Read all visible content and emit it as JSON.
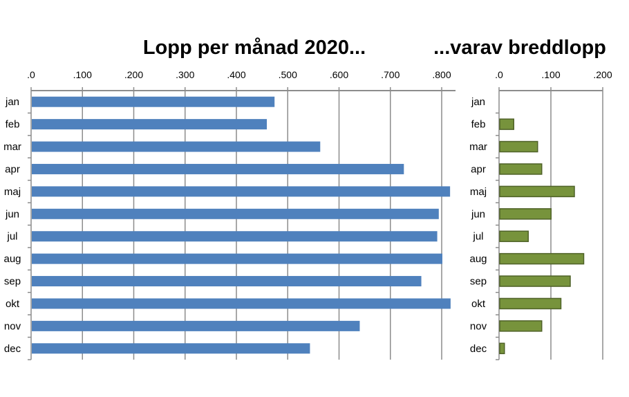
{
  "chart_data": [
    {
      "type": "bar",
      "orientation": "horizontal",
      "title": "Lopp per månad 2020...",
      "categories": [
        "jan",
        "feb",
        "mar",
        "apr",
        "maj",
        "jun",
        "jul",
        "aug",
        "sep",
        "okt",
        "nov",
        "dec"
      ],
      "values": [
        473,
        458,
        562,
        725,
        815,
        793,
        790,
        800,
        759,
        816,
        639,
        542
      ],
      "xlim": [
        0,
        827
      ],
      "ticks": [
        0,
        100,
        200,
        300,
        400,
        500,
        600,
        700,
        800
      ],
      "tick_labels": [
        ".0",
        ".100",
        ".200",
        ".300",
        ".400",
        ".500",
        ".600",
        ".700",
        ".800"
      ],
      "axis_position": "top",
      "grid": true,
      "color": "#4f81bd"
    },
    {
      "type": "bar",
      "orientation": "horizontal",
      "title": "...varav breddlopp",
      "categories": [
        "jan",
        "feb",
        "mar",
        "apr",
        "maj",
        "jun",
        "jul",
        "aug",
        "sep",
        "okt",
        "nov",
        "dec"
      ],
      "values": [
        0,
        27,
        73,
        81,
        144,
        99,
        55,
        162,
        136,
        118,
        81,
        9
      ],
      "xlim": [
        0,
        200
      ],
      "ticks": [
        0,
        100,
        200
      ],
      "tick_labels": [
        ".0",
        ".100",
        ".200"
      ],
      "axis_position": "top",
      "grid": true,
      "color": "#77933c",
      "border_color": "#4f6228"
    }
  ]
}
